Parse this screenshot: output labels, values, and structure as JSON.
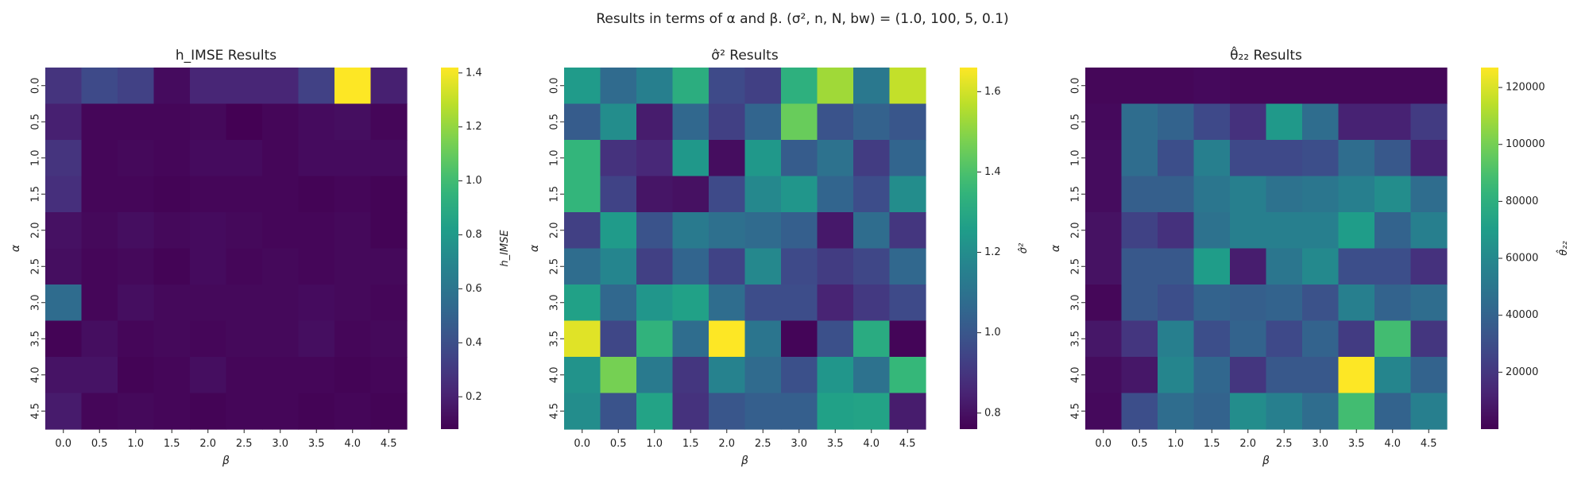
{
  "figure": {
    "suptitle": "Results in terms of α and β. (σ², n, N, bw) = (1.0, 100, 5, 0.1)"
  },
  "colors": {
    "viridis": [
      "#440154",
      "#482878",
      "#3e4a89",
      "#31688e",
      "#26828e",
      "#1f9e89",
      "#35b779",
      "#6ece58",
      "#b5de2b",
      "#fde725"
    ]
  },
  "chart_data": [
    {
      "type": "heatmap",
      "title": "h_IMSE Results",
      "xlabel": "β",
      "ylabel": "α",
      "colorbar_label": "h_IMSE",
      "x_categories": [
        "0.0",
        "0.5",
        "1.0",
        "1.5",
        "2.0",
        "2.5",
        "3.0",
        "3.5",
        "4.0",
        "4.5"
      ],
      "y_categories": [
        "0.0",
        "0.5",
        "1.0",
        "1.5",
        "2.0",
        "2.5",
        "3.0",
        "3.5",
        "4.0",
        "4.5"
      ],
      "vmin": 0.08,
      "vmax": 1.42,
      "colorbar_ticks": [
        "0.2",
        "0.4",
        "0.6",
        "0.8",
        "1.0",
        "1.2",
        "1.4"
      ],
      "values": [
        [
          0.28,
          0.38,
          0.34,
          0.12,
          0.22,
          0.22,
          0.22,
          0.34,
          1.42,
          0.2
        ],
        [
          0.2,
          0.1,
          0.1,
          0.1,
          0.11,
          0.08,
          0.1,
          0.12,
          0.13,
          0.1
        ],
        [
          0.28,
          0.1,
          0.11,
          0.1,
          0.12,
          0.12,
          0.1,
          0.12,
          0.12,
          0.12
        ],
        [
          0.26,
          0.1,
          0.1,
          0.09,
          0.1,
          0.1,
          0.1,
          0.09,
          0.1,
          0.09
        ],
        [
          0.14,
          0.11,
          0.13,
          0.11,
          0.12,
          0.11,
          0.1,
          0.1,
          0.11,
          0.09
        ],
        [
          0.13,
          0.1,
          0.11,
          0.09,
          0.12,
          0.1,
          0.11,
          0.1,
          0.11,
          0.11
        ],
        [
          0.55,
          0.1,
          0.13,
          0.11,
          0.11,
          0.11,
          0.11,
          0.12,
          0.11,
          0.1
        ],
        [
          0.09,
          0.13,
          0.1,
          0.11,
          0.1,
          0.11,
          0.11,
          0.13,
          0.1,
          0.11
        ],
        [
          0.15,
          0.15,
          0.09,
          0.1,
          0.13,
          0.1,
          0.1,
          0.1,
          0.09,
          0.1
        ],
        [
          0.18,
          0.1,
          0.11,
          0.1,
          0.09,
          0.1,
          0.1,
          0.09,
          0.1,
          0.09
        ]
      ]
    },
    {
      "type": "heatmap",
      "title": "σ̂² Results",
      "xlabel": "β",
      "ylabel": "α",
      "colorbar_label": "σ̂²",
      "x_categories": [
        "0.0",
        "0.5",
        "1.0",
        "1.5",
        "2.0",
        "2.5",
        "3.0",
        "3.5",
        "4.0",
        "4.5"
      ],
      "y_categories": [
        "0.0",
        "0.5",
        "1.0",
        "1.5",
        "2.0",
        "2.5",
        "3.0",
        "3.5",
        "4.0",
        "4.5"
      ],
      "vmin": 0.76,
      "vmax": 1.66,
      "colorbar_ticks": [
        "0.8",
        "1.0",
        "1.2",
        "1.4",
        "1.6"
      ],
      "values": [
        [
          1.25,
          1.07,
          1.15,
          1.32,
          0.96,
          0.93,
          1.33,
          1.53,
          1.12,
          1.58
        ],
        [
          1.02,
          1.2,
          0.83,
          1.06,
          0.93,
          1.05,
          1.45,
          0.99,
          1.04,
          1.0
        ],
        [
          1.35,
          0.89,
          0.86,
          1.24,
          0.79,
          1.24,
          1.02,
          1.1,
          0.92,
          1.05
        ],
        [
          1.35,
          0.94,
          0.81,
          0.8,
          0.96,
          1.18,
          1.23,
          1.05,
          0.97,
          1.2
        ],
        [
          0.93,
          1.25,
          0.99,
          1.13,
          1.09,
          1.07,
          1.03,
          0.82,
          1.08,
          0.9
        ],
        [
          1.08,
          1.17,
          0.93,
          1.05,
          0.94,
          1.18,
          0.96,
          0.92,
          0.95,
          1.06
        ],
        [
          1.27,
          1.06,
          1.23,
          1.27,
          1.08,
          0.97,
          0.97,
          0.85,
          0.91,
          0.96
        ],
        [
          1.62,
          0.95,
          1.34,
          1.08,
          1.66,
          1.11,
          0.77,
          0.98,
          1.31,
          0.77
        ],
        [
          1.22,
          1.47,
          1.13,
          0.9,
          1.16,
          1.07,
          0.98,
          1.23,
          1.1,
          1.36
        ],
        [
          1.2,
          0.99,
          1.28,
          0.89,
          1.0,
          1.03,
          1.03,
          1.27,
          1.28,
          0.83
        ]
      ]
    },
    {
      "type": "heatmap",
      "title": "θ̂₂₂ Results",
      "xlabel": "β",
      "ylabel": "α",
      "colorbar_label": "θ̂₂₂",
      "x_categories": [
        "0.0",
        "0.5",
        "1.0",
        "1.5",
        "2.0",
        "2.5",
        "3.0",
        "3.5",
        "4.0",
        "4.5"
      ],
      "y_categories": [
        "0.0",
        "0.5",
        "1.0",
        "1.5",
        "2.0",
        "2.5",
        "3.0",
        "3.5",
        "4.0",
        "4.5"
      ],
      "vmin": 0,
      "vmax": 127000,
      "colorbar_ticks": [
        "20000",
        "40000",
        "60000",
        "80000",
        "100000",
        "120000"
      ],
      "values": [
        [
          2000,
          2000,
          2000,
          3000,
          2000,
          2000,
          2000,
          2000,
          2000,
          2000
        ],
        [
          3000,
          45000,
          40000,
          28000,
          18000,
          68000,
          45000,
          12000,
          12000,
          22000
        ],
        [
          4000,
          45000,
          30000,
          55000,
          28000,
          28000,
          30000,
          45000,
          35000,
          12000
        ],
        [
          4000,
          38000,
          38000,
          50000,
          55000,
          48000,
          50000,
          55000,
          62000,
          45000
        ],
        [
          6000,
          25000,
          18000,
          48000,
          55000,
          55000,
          55000,
          70000,
          40000,
          55000
        ],
        [
          6000,
          35000,
          35000,
          70000,
          10000,
          50000,
          60000,
          30000,
          30000,
          18000
        ],
        [
          2000,
          35000,
          30000,
          40000,
          38000,
          40000,
          32000,
          55000,
          40000,
          45000
        ],
        [
          8000,
          20000,
          55000,
          30000,
          40000,
          28000,
          40000,
          22000,
          88000,
          20000
        ],
        [
          4000,
          8000,
          58000,
          42000,
          20000,
          35000,
          35000,
          127000,
          58000,
          40000
        ],
        [
          3000,
          30000,
          45000,
          40000,
          62000,
          55000,
          45000,
          88000,
          40000,
          55000
        ]
      ]
    }
  ]
}
